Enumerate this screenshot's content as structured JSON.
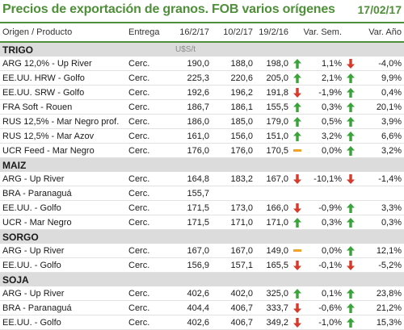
{
  "header": {
    "title": "Precios de exportación de granos. FOB varios orígenes",
    "date": "17/02/17"
  },
  "columns": [
    "Origen / Producto",
    "Entrega",
    "16/2/17",
    "10/2/17",
    "19/2/16",
    "Var. Sem.",
    "Var. Año"
  ],
  "colors": {
    "accent": "#4f8f3a",
    "up": "#3aa33a",
    "down": "#d63a2a",
    "flat": "#f2a227"
  },
  "sections": [
    {
      "name": "TRIGO",
      "unit": "U$S/t",
      "rows": [
        {
          "origin": "ARG 12,0% - Up River",
          "entrega": "Cerc.",
          "d1": "190,0",
          "d2": "188,0",
          "d3": "198,0",
          "t1": "up",
          "var_sem": "1,1%",
          "t2": "down",
          "var_anio": "-4,0%"
        },
        {
          "origin": "EE.UU. HRW - Golfo",
          "entrega": "Cerc.",
          "d1": "225,3",
          "d2": "220,6",
          "d3": "205,0",
          "t1": "up",
          "var_sem": "2,1%",
          "t2": "up",
          "var_anio": "9,9%"
        },
        {
          "origin": "EE.UU. SRW - Golfo",
          "entrega": "Cerc.",
          "d1": "192,6",
          "d2": "196,2",
          "d3": "191,8",
          "t1": "down",
          "var_sem": "-1,9%",
          "t2": "up",
          "var_anio": "0,4%"
        },
        {
          "origin": "FRA Soft - Rouen",
          "entrega": "Cerc.",
          "d1": "186,7",
          "d2": "186,1",
          "d3": "155,5",
          "t1": "up",
          "var_sem": "0,3%",
          "t2": "up",
          "var_anio": "20,1%"
        },
        {
          "origin": "RUS 12,5% - Mar Negro prof.",
          "entrega": "Cerc.",
          "d1": "186,0",
          "d2": "185,0",
          "d3": "179,0",
          "t1": "up",
          "var_sem": "0,5%",
          "t2": "up",
          "var_anio": "3,9%"
        },
        {
          "origin": "RUS 12,5% - Mar Azov",
          "entrega": "Cerc.",
          "d1": "161,0",
          "d2": "156,0",
          "d3": "151,0",
          "t1": "up",
          "var_sem": "3,2%",
          "t2": "up",
          "var_anio": "6,6%"
        },
        {
          "origin": "UCR Feed - Mar Negro",
          "entrega": "Cerc.",
          "d1": "176,0",
          "d2": "176,0",
          "d3": "170,5",
          "t1": "flat",
          "var_sem": "0,0%",
          "t2": "up",
          "var_anio": "3,2%"
        }
      ]
    },
    {
      "name": "MAIZ",
      "unit": "",
      "rows": [
        {
          "origin": "ARG - Up River",
          "entrega": "Cerc.",
          "d1": "164,8",
          "d2": "183,2",
          "d3": "167,0",
          "t1": "down",
          "var_sem": "-10,1%",
          "t2": "down",
          "var_anio": "-1,4%"
        },
        {
          "origin": "BRA - Paranaguá",
          "entrega": "Cerc.",
          "d1": "155,7",
          "d2": "",
          "d3": "",
          "t1": "",
          "var_sem": "",
          "t2": "",
          "var_anio": ""
        },
        {
          "origin": "EE.UU. - Golfo",
          "entrega": "Cerc.",
          "d1": "171,5",
          "d2": "173,0",
          "d3": "166,0",
          "t1": "down",
          "var_sem": "-0,9%",
          "t2": "up",
          "var_anio": "3,3%"
        },
        {
          "origin": "UCR - Mar Negro",
          "entrega": "Cerc.",
          "d1": "171,5",
          "d2": "171,0",
          "d3": "171,0",
          "t1": "up",
          "var_sem": "0,3%",
          "t2": "up",
          "var_anio": "0,3%"
        }
      ]
    },
    {
      "name": "SORGO",
      "unit": "",
      "rows": [
        {
          "origin": "ARG - Up River",
          "entrega": "Cerc.",
          "d1": "167,0",
          "d2": "167,0",
          "d3": "149,0",
          "t1": "flat",
          "var_sem": "0,0%",
          "t2": "up",
          "var_anio": "12,1%"
        },
        {
          "origin": "EE.UU. - Golfo",
          "entrega": "Cerc.",
          "d1": "156,9",
          "d2": "157,1",
          "d3": "165,5",
          "t1": "down",
          "var_sem": "-0,1%",
          "t2": "down",
          "var_anio": "-5,2%"
        }
      ]
    },
    {
      "name": "SOJA",
      "unit": "",
      "rows": [
        {
          "origin": "ARG - Up River",
          "entrega": "Cerc.",
          "d1": "402,6",
          "d2": "402,0",
          "d3": "325,0",
          "t1": "up",
          "var_sem": "0,1%",
          "t2": "up",
          "var_anio": "23,8%"
        },
        {
          "origin": "BRA - Paranaguá",
          "entrega": "Cerc.",
          "d1": "404,4",
          "d2": "406,7",
          "d3": "333,7",
          "t1": "down",
          "var_sem": "-0,6%",
          "t2": "up",
          "var_anio": "21,2%"
        },
        {
          "origin": "EE.UU. - Golfo",
          "entrega": "Cerc.",
          "d1": "402,6",
          "d2": "406,7",
          "d3": "349,2",
          "t1": "down",
          "var_sem": "-1,0%",
          "t2": "up",
          "var_anio": "15,3%"
        }
      ]
    }
  ]
}
